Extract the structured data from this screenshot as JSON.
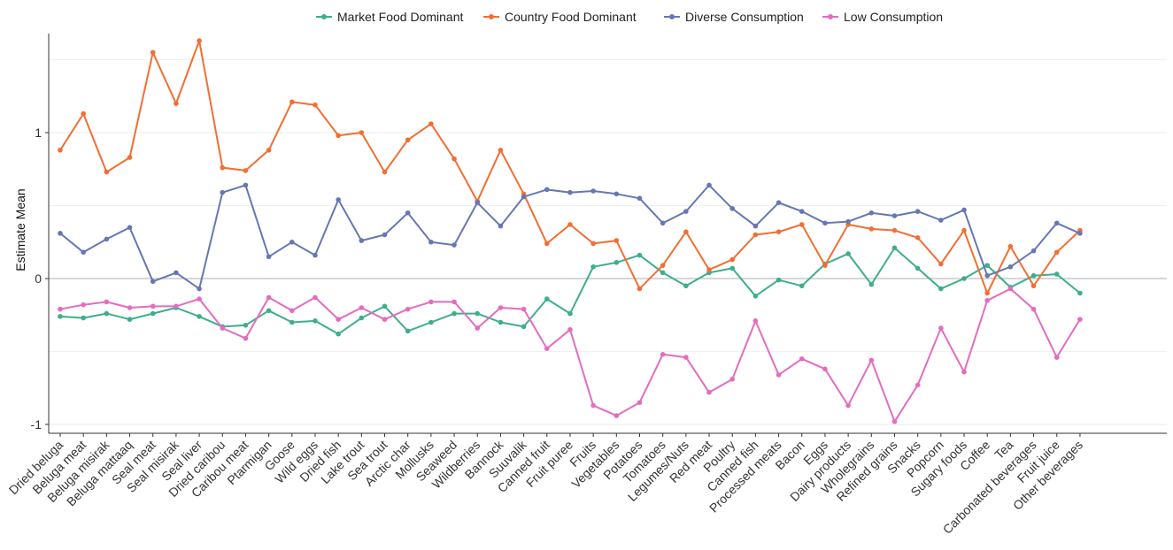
{
  "chart_data": {
    "type": "line",
    "ylabel": "Estimate Mean",
    "xlabel": "",
    "ylim": [
      -1.1,
      1.65
    ],
    "yticks": [
      -1,
      0,
      1
    ],
    "grid": "horizontal",
    "legend_position": "top",
    "categories": [
      "Dried beluga",
      "Beluga meat",
      "Beluga misirak",
      "Beluga mattaaq",
      "Seal meat",
      "Seal misirak",
      "Seal liver",
      "Dried caribou",
      "Caribou meat",
      "Ptarmigan",
      "Goose",
      "Wild eggs",
      "Dried fish",
      "Lake trout",
      "Sea trout",
      "Arctic char",
      "Mollusks",
      "Seaweed",
      "Wildberries",
      "Bannock",
      "Suuvalik",
      "Canned fruit",
      "Fruit puree",
      "Fruits",
      "Vegetables",
      "Potatoes",
      "Tomatoes",
      "Legumes/Nuts",
      "Red meat",
      "Poultry",
      "Canned fish",
      "Processed meats",
      "Bacon",
      "Eggs",
      "Dairy products",
      "Wholegrains",
      "Refined grains",
      "Snacks",
      "Popcorn",
      "Sugary foods",
      "Coffee",
      "Tea",
      "Carbonated beverages",
      "Fruit juice",
      "Other beverages"
    ],
    "series": [
      {
        "name": "Market Food Dominant",
        "color": "#3dae8a",
        "values": [
          -0.26,
          -0.27,
          -0.24,
          -0.28,
          -0.24,
          -0.2,
          -0.26,
          -0.33,
          -0.32,
          -0.22,
          -0.3,
          -0.29,
          -0.38,
          -0.27,
          -0.19,
          -0.36,
          -0.3,
          -0.24,
          -0.24,
          -0.3,
          -0.33,
          -0.14,
          -0.24,
          0.08,
          0.11,
          0.16,
          0.04,
          -0.05,
          0.04,
          0.07,
          -0.12,
          -0.01,
          -0.05,
          0.1,
          0.17,
          -0.04,
          0.21,
          0.07,
          -0.07,
          0.0,
          0.09,
          -0.06,
          0.02,
          0.03,
          -0.1
        ]
      },
      {
        "name": "Country Food Dominant",
        "color": "#f26e32",
        "values": [
          0.88,
          1.13,
          0.73,
          0.83,
          1.55,
          1.2,
          1.63,
          0.76,
          0.74,
          0.88,
          1.21,
          1.19,
          0.98,
          1.0,
          0.73,
          0.95,
          1.06,
          0.82,
          0.53,
          0.88,
          0.58,
          0.24,
          0.37,
          0.24,
          0.26,
          -0.07,
          0.09,
          0.32,
          0.06,
          0.13,
          0.3,
          0.32,
          0.37,
          0.09,
          0.37,
          0.34,
          0.33,
          0.28,
          0.1,
          0.33,
          -0.1,
          0.22,
          -0.05,
          0.18,
          0.33
        ]
      },
      {
        "name": "Diverse Consumption",
        "color": "#6677b3",
        "values": [
          0.31,
          0.18,
          0.27,
          0.35,
          -0.02,
          0.04,
          -0.07,
          0.59,
          0.64,
          0.15,
          0.25,
          0.16,
          0.54,
          0.26,
          0.3,
          0.45,
          0.25,
          0.23,
          0.52,
          0.36,
          0.56,
          0.61,
          0.59,
          0.6,
          0.58,
          0.55,
          0.38,
          0.46,
          0.64,
          0.48,
          0.36,
          0.52,
          0.46,
          0.38,
          0.39,
          0.45,
          0.43,
          0.46,
          0.4,
          0.47,
          0.02,
          0.08,
          0.19,
          0.38,
          0.31
        ]
      },
      {
        "name": "Low Consumption",
        "color": "#e36cbf",
        "values": [
          -0.21,
          -0.18,
          -0.16,
          -0.2,
          -0.19,
          -0.19,
          -0.14,
          -0.34,
          -0.41,
          -0.13,
          -0.22,
          -0.13,
          -0.28,
          -0.2,
          -0.28,
          -0.21,
          -0.16,
          -0.16,
          -0.34,
          -0.2,
          -0.21,
          -0.48,
          -0.35,
          -0.87,
          -0.94,
          -0.85,
          -0.52,
          -0.54,
          -0.78,
          -0.69,
          -0.29,
          -0.66,
          -0.55,
          -0.62,
          -0.87,
          -0.56,
          -0.98,
          -0.73,
          -0.34,
          -0.64,
          -0.15,
          -0.07,
          -0.21,
          -0.54,
          -0.28
        ]
      }
    ]
  }
}
